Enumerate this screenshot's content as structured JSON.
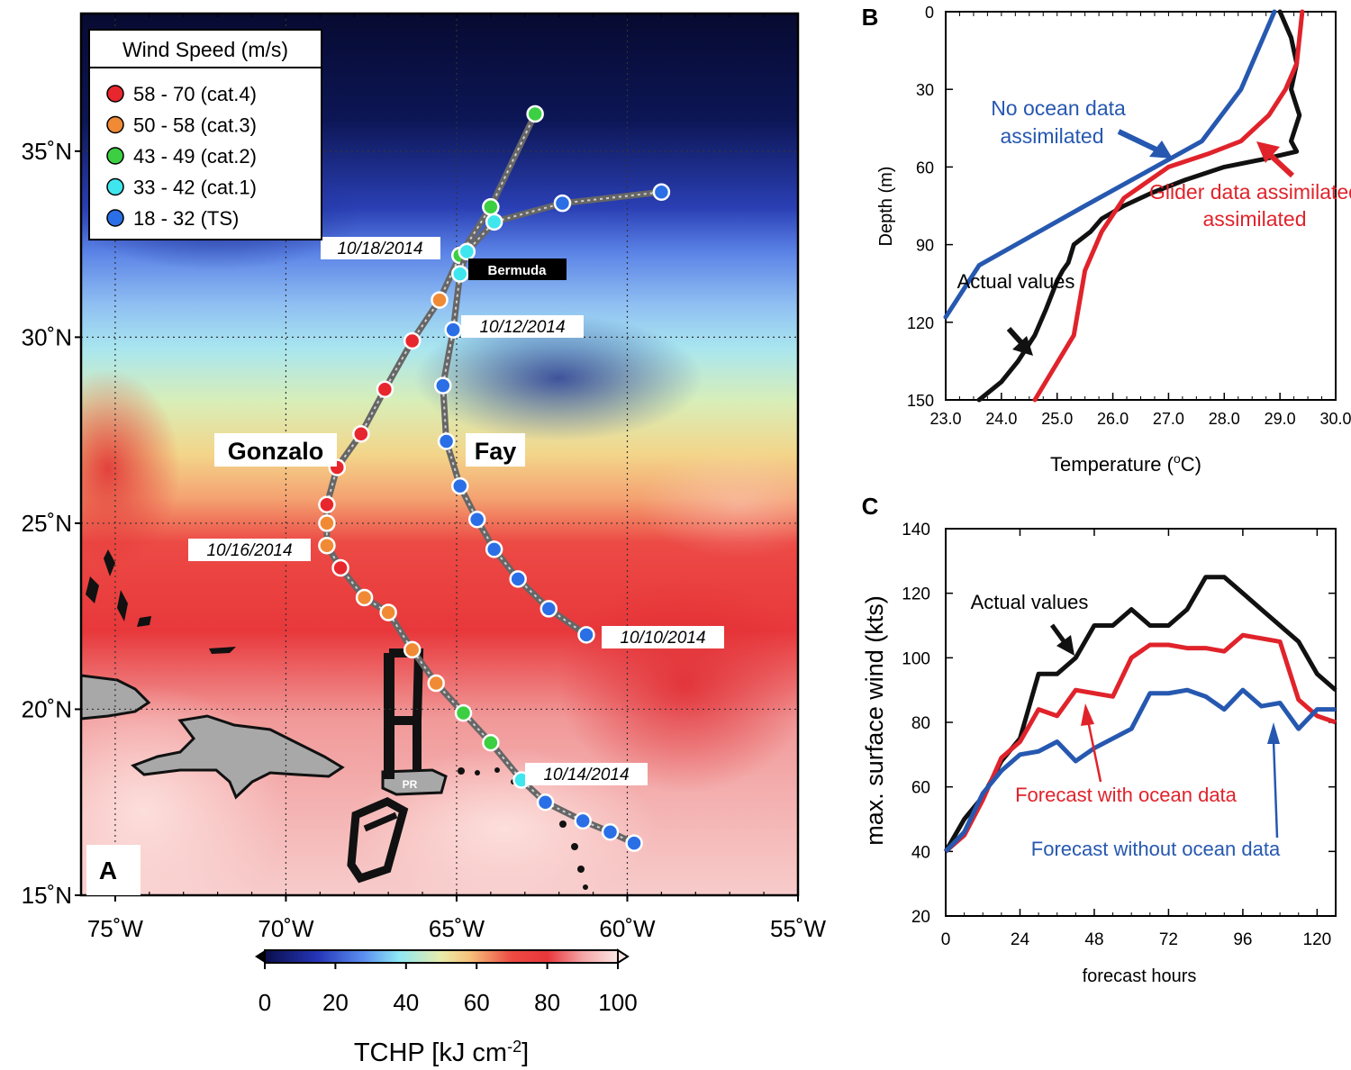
{
  "figure": {
    "colors": {
      "cat4": "#e8262d",
      "cat3": "#f08a35",
      "cat2": "#3ccf42",
      "cat1": "#3fe6ee",
      "ts": "#2a6fe6",
      "actual": "#111111",
      "with_ocean": "#e0232b",
      "without_ocean": "#2658b0"
    }
  },
  "chart_data": [
    {
      "id": "A",
      "panel_label": "A",
      "type": "map",
      "title": "",
      "lon_range": [
        -76,
        -55
      ],
      "lat_range": [
        15,
        38.7
      ],
      "x_tick_labels": [
        {
          "lon": -75,
          "label": "75˚W"
        },
        {
          "lon": -70,
          "label": "70˚W"
        },
        {
          "lon": -65,
          "label": "65˚W"
        },
        {
          "lon": -60,
          "label": "60˚W"
        },
        {
          "lon": -55,
          "label": "55˚W"
        }
      ],
      "y_tick_labels": [
        {
          "lat": 15,
          "label": "15˚N"
        },
        {
          "lat": 20,
          "label": "20˚N"
        },
        {
          "lat": 25,
          "label": "25˚N"
        },
        {
          "lat": 30,
          "label": "30˚N"
        },
        {
          "lat": 35,
          "label": "35˚N"
        }
      ],
      "legend": {
        "title": "Wind Speed (m/s)",
        "entries": [
          {
            "label": "58 - 70 (cat.4)",
            "cat": "cat4"
          },
          {
            "label": "50 - 58 (cat.3)",
            "cat": "cat3"
          },
          {
            "label": "43 - 49 (cat.2)",
            "cat": "cat2"
          },
          {
            "label": "33 - 42 (cat.1)",
            "cat": "cat1"
          },
          {
            "label": "18 - 32 (TS)",
            "cat": "ts"
          }
        ]
      },
      "colorbar": {
        "label": "TCHP [kJ cm",
        "label_sup": "-2",
        "label_end": "]",
        "ticks": [
          0,
          20,
          40,
          60,
          80,
          100
        ],
        "tick_labels": [
          "0",
          "20",
          "40",
          "60",
          "80",
          "100"
        ]
      },
      "storms": [
        {
          "name": "Gonzalo",
          "points": [
            {
              "lon": -59.8,
              "lat": 16.4,
              "cat": "ts"
            },
            {
              "lon": -60.5,
              "lat": 16.7,
              "cat": "ts"
            },
            {
              "lon": -61.3,
              "lat": 17.0,
              "cat": "ts"
            },
            {
              "lon": -62.4,
              "lat": 17.5,
              "cat": "ts"
            },
            {
              "lon": -63.1,
              "lat": 18.1,
              "cat": "cat1"
            },
            {
              "lon": -64.0,
              "lat": 19.1,
              "cat": "cat2"
            },
            {
              "lon": -64.8,
              "lat": 19.9,
              "cat": "cat2"
            },
            {
              "lon": -65.6,
              "lat": 20.7,
              "cat": "cat3"
            },
            {
              "lon": -66.3,
              "lat": 21.6,
              "cat": "cat3"
            },
            {
              "lon": -67.0,
              "lat": 22.6,
              "cat": "cat3"
            },
            {
              "lon": -67.7,
              "lat": 23.0,
              "cat": "cat3"
            },
            {
              "lon": -68.4,
              "lat": 23.8,
              "cat": "cat4"
            },
            {
              "lon": -68.8,
              "lat": 24.4,
              "cat": "cat3"
            },
            {
              "lon": -68.8,
              "lat": 25.0,
              "cat": "cat3"
            },
            {
              "lon": -68.8,
              "lat": 25.5,
              "cat": "cat4"
            },
            {
              "lon": -68.5,
              "lat": 26.5,
              "cat": "cat4"
            },
            {
              "lon": -67.8,
              "lat": 27.4,
              "cat": "cat4"
            },
            {
              "lon": -67.1,
              "lat": 28.6,
              "cat": "cat4"
            },
            {
              "lon": -66.3,
              "lat": 29.9,
              "cat": "cat4"
            },
            {
              "lon": -65.5,
              "lat": 31.0,
              "cat": "cat3"
            },
            {
              "lon": -64.9,
              "lat": 32.2,
              "cat": "cat2"
            },
            {
              "lon": -64.0,
              "lat": 33.5,
              "cat": "cat2"
            },
            {
              "lon": -62.7,
              "lat": 36.0,
              "cat": "cat2"
            }
          ]
        },
        {
          "name": "Fay",
          "points": [
            {
              "lon": -61.2,
              "lat": 22.0,
              "cat": "ts"
            },
            {
              "lon": -62.3,
              "lat": 22.7,
              "cat": "ts"
            },
            {
              "lon": -63.2,
              "lat": 23.5,
              "cat": "ts"
            },
            {
              "lon": -63.9,
              "lat": 24.3,
              "cat": "ts"
            },
            {
              "lon": -64.4,
              "lat": 25.1,
              "cat": "ts"
            },
            {
              "lon": -64.9,
              "lat": 26.0,
              "cat": "ts"
            },
            {
              "lon": -65.3,
              "lat": 27.2,
              "cat": "ts"
            },
            {
              "lon": -65.4,
              "lat": 28.7,
              "cat": "ts"
            },
            {
              "lon": -65.1,
              "lat": 30.2,
              "cat": "ts"
            },
            {
              "lon": -64.9,
              "lat": 31.7,
              "cat": "cat1"
            },
            {
              "lon": -64.7,
              "lat": 32.3,
              "cat": "cat1"
            },
            {
              "lon": -63.9,
              "lat": 33.1,
              "cat": "cat1"
            },
            {
              "lon": -61.9,
              "lat": 33.6,
              "cat": "ts"
            },
            {
              "lon": -59.0,
              "lat": 33.9,
              "cat": "ts"
            }
          ]
        }
      ],
      "storm_labels": [
        "Gonzalo",
        "Fay"
      ],
      "date_labels": [
        "10/18/2014",
        "10/12/2014",
        "10/16/2014",
        "10/10/2014",
        "10/14/2014"
      ],
      "place_labels": [
        "Bermuda",
        "PR"
      ]
    },
    {
      "id": "B",
      "panel_label": "B",
      "type": "line",
      "xlabel": "Temperature (",
      "xlabel_sup": "o",
      "xlabel_end": "C)",
      "ylabel": "Depth (m)",
      "xlim": [
        23.0,
        30.0
      ],
      "ylim": [
        0,
        150
      ],
      "y_inverted": true,
      "x_ticks": [
        23.0,
        24.0,
        25.0,
        26.0,
        27.0,
        28.0,
        29.0,
        30.0
      ],
      "x_tick_labels": [
        "23.0",
        "24.0",
        "25.0",
        "26.0",
        "27.0",
        "28.0",
        "29.0",
        "30.0"
      ],
      "y_ticks": [
        0,
        30,
        60,
        90,
        120,
        150
      ],
      "y_tick_labels": [
        "0",
        "30",
        "60",
        "90",
        "120",
        "150"
      ],
      "series": [
        {
          "name": "Actual values",
          "color_key": "actual",
          "temperature": [
            29.0,
            29.2,
            29.3,
            29.2,
            29.35,
            29.2,
            29.3,
            29.1,
            28.7,
            28.0,
            27.3,
            26.7,
            26.2,
            25.8,
            25.6,
            25.3,
            25.2,
            25.1,
            25.0,
            24.8,
            24.6,
            24.3,
            24.0,
            23.6
          ],
          "depth": [
            0,
            10,
            20,
            30,
            40,
            50,
            54,
            55,
            57,
            60,
            65,
            70,
            75,
            80,
            85,
            90,
            97,
            100,
            104,
            115,
            125,
            135,
            143,
            150
          ]
        },
        {
          "name": "Glider data assimilated",
          "color_key": "with_ocean",
          "temperature": [
            29.4,
            29.35,
            29.3,
            29.1,
            28.8,
            28.3,
            27.7,
            27.0,
            26.2,
            25.8,
            25.5,
            25.3,
            24.6
          ],
          "depth": [
            0,
            10,
            20,
            30,
            40,
            50,
            55,
            60,
            72,
            85,
            100,
            125,
            150
          ]
        },
        {
          "name": "No ocean data assimilated",
          "color_key": "without_ocean",
          "temperature": [
            28.9,
            28.7,
            28.3,
            27.6,
            25.5,
            23.6,
            23.0
          ],
          "depth": [
            0,
            10,
            30,
            50,
            75,
            98,
            118
          ]
        }
      ],
      "annotations": [
        "No ocean data assimilated",
        "Glider data assimilated",
        "Actual values"
      ]
    },
    {
      "id": "C",
      "panel_label": "C",
      "type": "line",
      "xlabel": "forecast hours",
      "ylabel": "max. surface wind (kts)",
      "xlim": [
        0,
        126
      ],
      "ylim": [
        20,
        140
      ],
      "x_ticks": [
        0,
        24,
        48,
        72,
        96,
        120
      ],
      "x_tick_labels": [
        "0",
        "24",
        "48",
        "72",
        "96",
        "120"
      ],
      "y_ticks": [
        20,
        40,
        60,
        80,
        100,
        120,
        140
      ],
      "y_tick_labels": [
        "20",
        "40",
        "60",
        "80",
        "100",
        "120",
        "140"
      ],
      "x": [
        0,
        6,
        12,
        18,
        24,
        30,
        36,
        42,
        48,
        54,
        60,
        66,
        72,
        78,
        84,
        90,
        96,
        102,
        108,
        114,
        120,
        126
      ],
      "series": [
        {
          "name": "Actual values",
          "color_key": "actual",
          "values": [
            40,
            50,
            57,
            68,
            75,
            95,
            95,
            100,
            110,
            110,
            115,
            110,
            110,
            115,
            125,
            125,
            120,
            115,
            110,
            105,
            95,
            90
          ]
        },
        {
          "name": "Forecast with ocean data",
          "color_key": "with_ocean",
          "values": [
            40,
            45,
            56,
            69,
            74,
            84,
            82,
            90,
            89,
            88,
            100,
            104,
            104,
            103,
            103,
            102,
            107,
            106,
            105,
            87,
            82,
            80
          ]
        },
        {
          "name": "Forecast without ocean data",
          "color_key": "without_ocean",
          "values": [
            40,
            46,
            58,
            65,
            70,
            71,
            74,
            68,
            72,
            75,
            78,
            89,
            89,
            90,
            88,
            84,
            90,
            85,
            86,
            78,
            84,
            84
          ]
        }
      ],
      "annotations": [
        "Actual values",
        "Forecast with ocean data",
        "Forecast without ocean data"
      ]
    }
  ]
}
